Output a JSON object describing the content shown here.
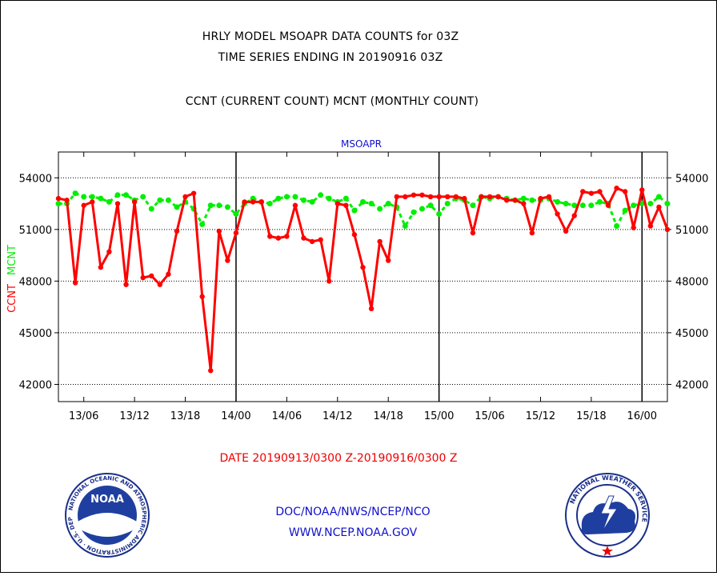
{
  "titles": {
    "line1": "HRLY MODEL MSOAPR DATA COUNTS for 03Z",
    "line2": "TIME SERIES ENDING IN 20190916 03Z",
    "line3": "CCNT (CURRENT COUNT) MCNT (MONTHLY COUNT)"
  },
  "date_range": "DATE 20190913/0300 Z-20190916/0300 Z",
  "footer": {
    "org": "DOC/NOAA/NWS/NCEP/NCO",
    "url": "WWW.NCEP.NOAA.GOV"
  },
  "logos": {
    "left_text": "NATIONAL OCEANIC AND ATMOSPHERIC ADMINISTRATION · U.S. DEPARTMENT OF COMMERCE",
    "left_badge": "NOAA",
    "right_text": "NATIONAL WEATHER SERVICE"
  },
  "colors": {
    "ccnt": "#ff0000",
    "mcnt": "#00ee00",
    "title_blue": "#1010cc",
    "red_text": "#ee0000"
  },
  "chart_data": {
    "type": "line",
    "title": "MSOAPR",
    "ylabel_ccnt": "CCNT",
    "ylabel_mcnt": "MCNT",
    "ylim": [
      41000,
      55500
    ],
    "yticks": [
      42000,
      45000,
      48000,
      51000,
      54000
    ],
    "ytick_labels": [
      "42000",
      "45000",
      "48000",
      "51000",
      "54000"
    ],
    "xlim": [
      0,
      72
    ],
    "x_tick_positions": [
      3,
      9,
      15,
      21,
      27,
      33,
      39,
      45,
      51,
      57,
      63,
      69
    ],
    "x_tick_labels": [
      "13/06",
      "13/12",
      "13/18",
      "14/00",
      "14/06",
      "14/12",
      "14/18",
      "15/00",
      "15/06",
      "15/12",
      "15/18",
      "16/00"
    ],
    "day_boundaries": [
      21,
      45,
      69
    ],
    "grid": true,
    "series": [
      {
        "name": "CCNT",
        "values": [
          52800,
          52700,
          47900,
          52400,
          52600,
          48800,
          49700,
          52500,
          47800,
          52600,
          48200,
          48300,
          47800,
          48400,
          50900,
          52900,
          53100,
          47100,
          42800,
          50900,
          49200,
          50800,
          52600,
          52600,
          52600,
          50600,
          50500,
          50600,
          52400,
          50500,
          50300,
          50400,
          48000,
          52500,
          52400,
          50700,
          48800,
          46400,
          50300,
          49200,
          52900,
          52900,
          53000,
          53000,
          52900,
          52900,
          52900,
          52900,
          52800,
          50800,
          52900,
          52900,
          52900,
          52700,
          52700,
          52500,
          50800,
          52800,
          52900,
          51900,
          50900,
          51800,
          53200,
          53100,
          53200,
          52400,
          53400,
          53200,
          51100,
          53300,
          51200,
          52300,
          51000
        ]
      },
      {
        "name": "MCNT",
        "values": [
          52500,
          52500,
          53100,
          52900,
          52900,
          52800,
          52600,
          53000,
          53000,
          52700,
          52900,
          52200,
          52700,
          52700,
          52300,
          52600,
          52200,
          51300,
          52400,
          52400,
          52300,
          51900,
          52500,
          52800,
          52600,
          52500,
          52800,
          52900,
          52900,
          52700,
          52600,
          53000,
          52800,
          52600,
          52800,
          52100,
          52600,
          52500,
          52200,
          52500,
          52300,
          51200,
          52000,
          52200,
          52400,
          51900,
          52500,
          52800,
          52700,
          52400,
          52900,
          52800,
          52900,
          52800,
          52700,
          52800,
          52700,
          52700,
          52800,
          52600,
          52500,
          52400,
          52400,
          52400,
          52600,
          52500,
          51200,
          52100,
          52400,
          52500,
          52500,
          52900,
          52500
        ]
      }
    ]
  }
}
